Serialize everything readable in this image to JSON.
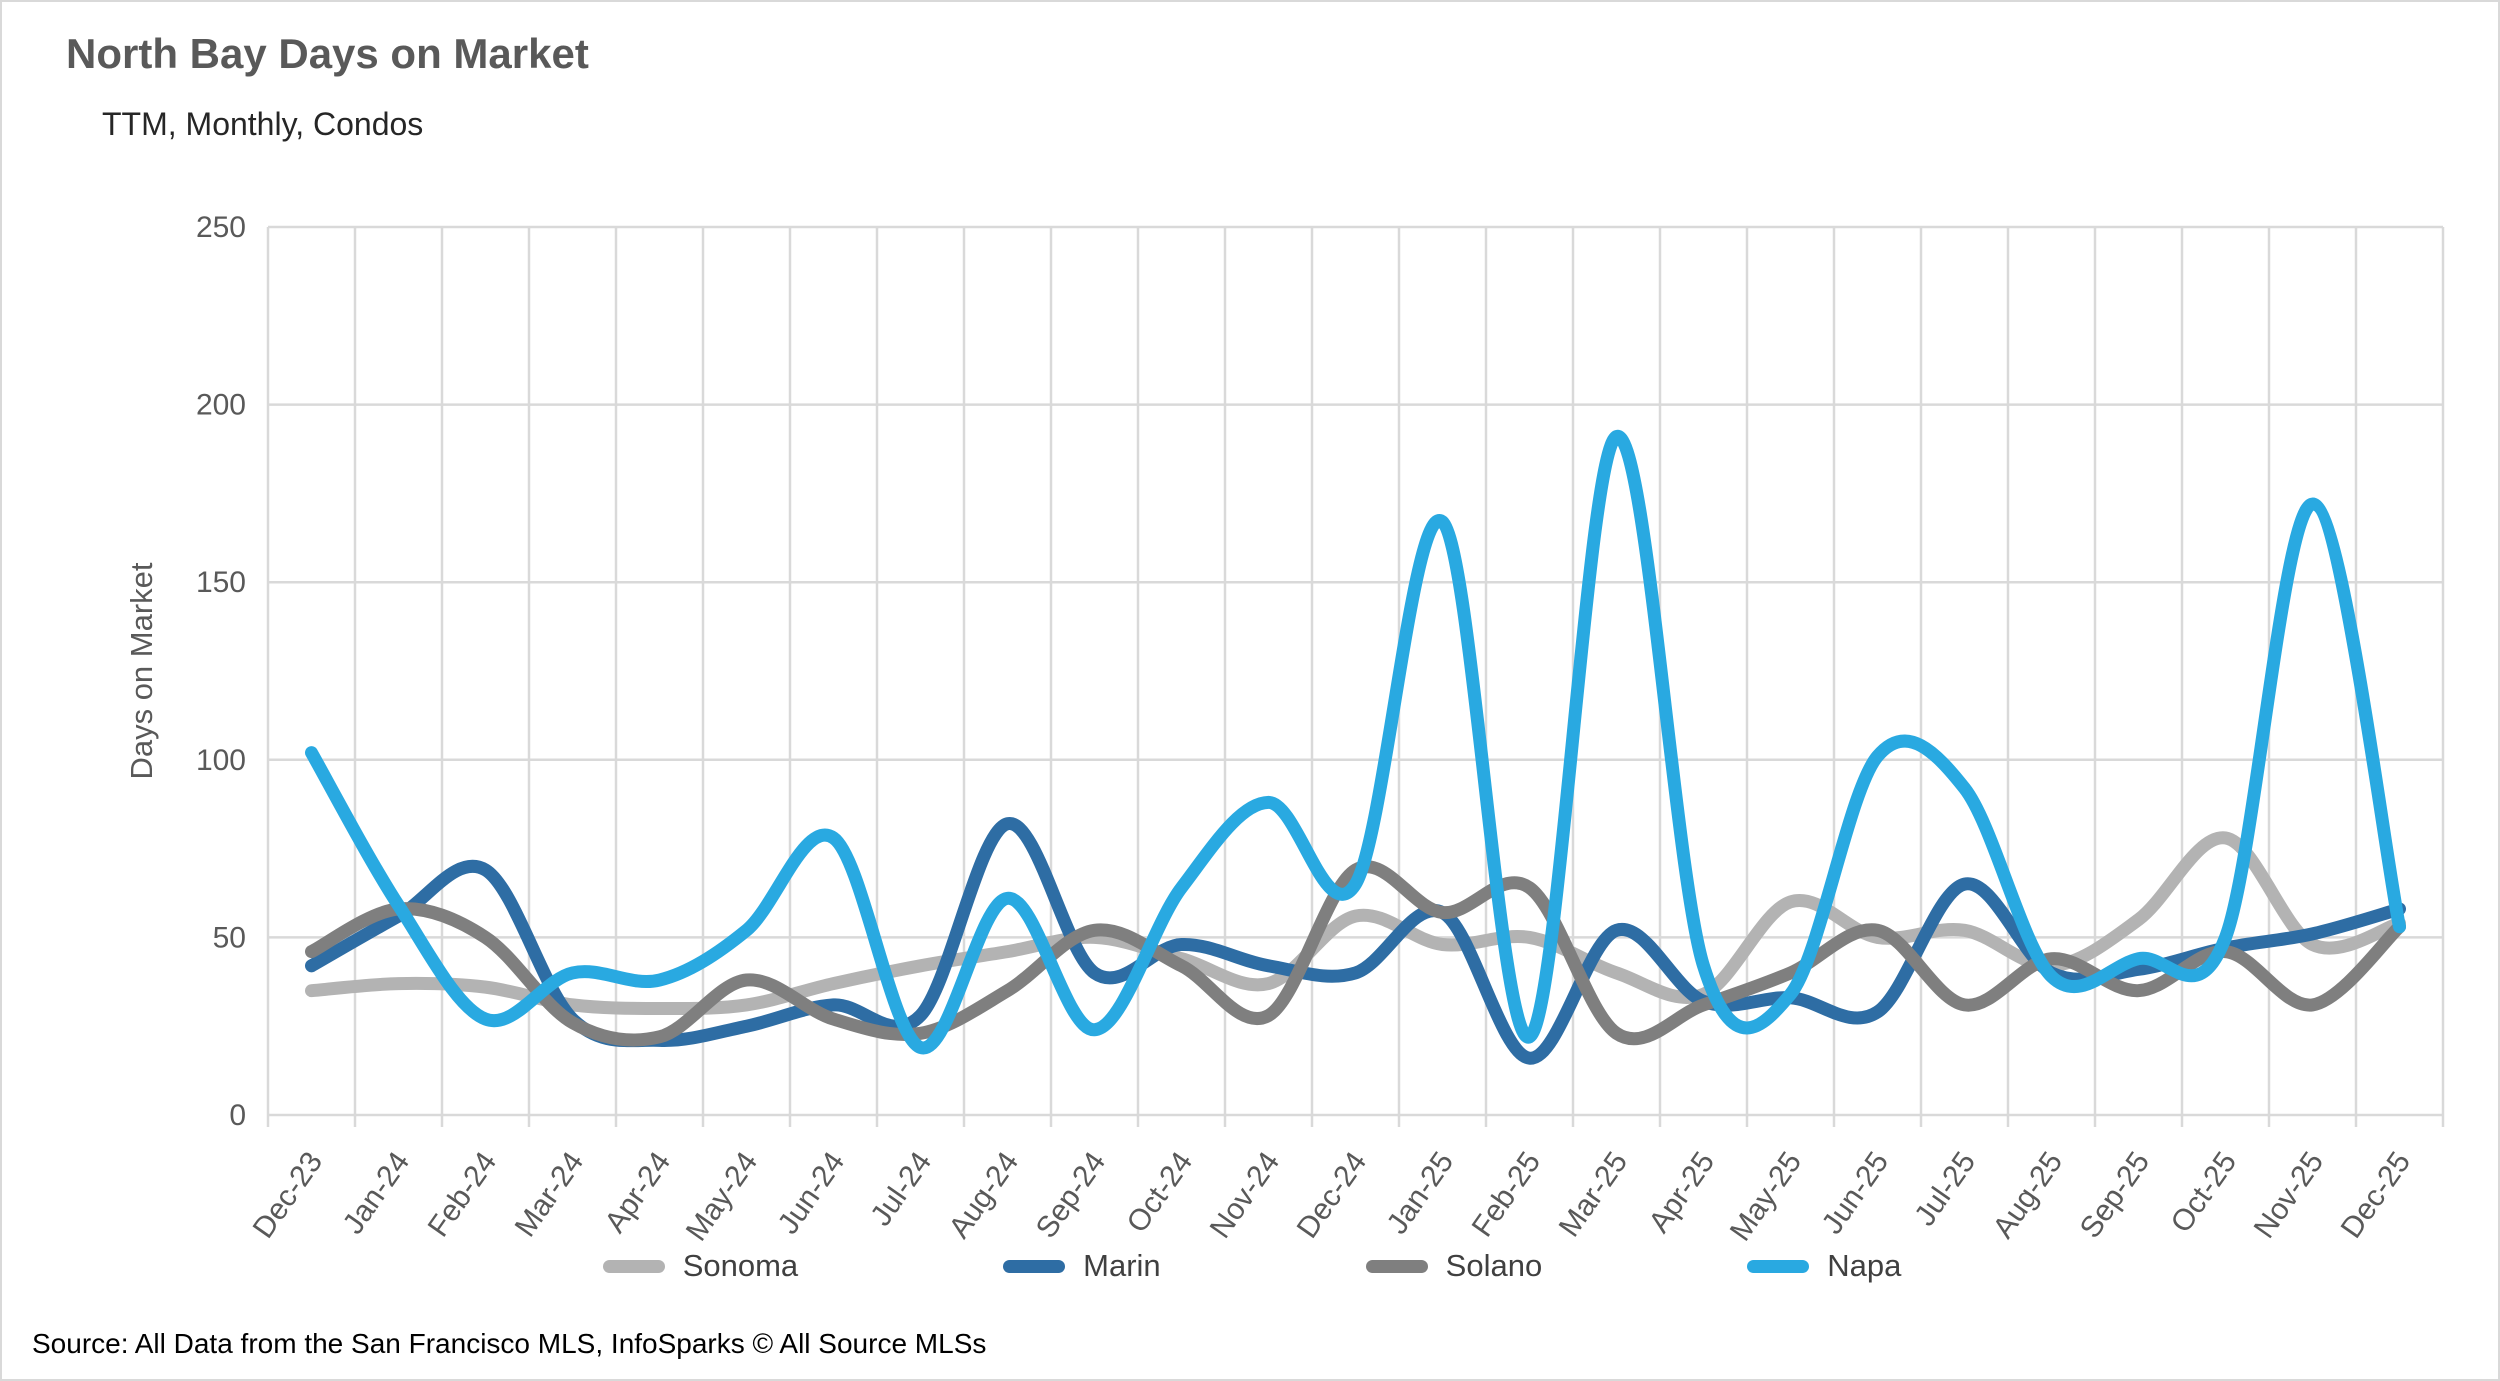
{
  "title": "North Bay Days on Market",
  "subtitle": "TTM, Monthly, Condos",
  "source": "Source: All Data from the San Francisco MLS, InfoSparks © All Source MLSs",
  "chart_data": {
    "type": "line",
    "title": "North Bay Days on Market",
    "subtitle": "TTM, Monthly, Condos",
    "xlabel": "",
    "ylabel": "Days on Market",
    "ylim": [
      0,
      250
    ],
    "ytick_interval": 50,
    "ytick_labels": [
      "0",
      "50",
      "100",
      "150",
      "200",
      "250"
    ],
    "grid": "both",
    "line_smoothing": true,
    "legend_position": "bottom",
    "axis_text_color": "#595959",
    "grid_color": "#d9d9d9",
    "categories": [
      "Dec-23",
      "Jan-24",
      "Feb-24",
      "Mar-24",
      "Apr-24",
      "May-24",
      "Jun-24",
      "Jul-24",
      "Aug-24",
      "Sep-24",
      "Oct-24",
      "Nov-24",
      "Dec-24",
      "Jan-25",
      "Feb-25",
      "Mar-25",
      "Apr-25",
      "May-25",
      "Jun-25",
      "Jul-25",
      "Aug-25",
      "Sep-25",
      "Oct-25",
      "Nov-25",
      "Dec-25"
    ],
    "series": [
      {
        "name": "Sonoma",
        "color": "#b3b3b3",
        "values": [
          35,
          37,
          36,
          31,
          30,
          31,
          37,
          42,
          46,
          50,
          44,
          37,
          56,
          48,
          50,
          40,
          34,
          60,
          50,
          52,
          42,
          55,
          78,
          48,
          54
        ]
      },
      {
        "name": "Marin",
        "color": "#2e6da4",
        "values": [
          42,
          56,
          69,
          27,
          21,
          25,
          31,
          28,
          82,
          40,
          48,
          42,
          40,
          57,
          16,
          52,
          32,
          33,
          29,
          65,
          40,
          41,
          47,
          51,
          58
        ]
      },
      {
        "name": "Solano",
        "color": "#7f7f7f",
        "values": [
          46,
          58,
          50,
          26,
          22,
          38,
          27,
          23,
          35,
          52,
          42,
          28,
          69,
          57,
          64,
          23,
          31,
          40,
          52,
          31,
          44,
          35,
          46,
          31,
          53
        ]
      },
      {
        "name": "Napa",
        "color": "#29a9e1",
        "values": [
          102,
          59,
          27,
          40,
          38,
          52,
          78,
          19,
          61,
          24,
          64,
          88,
          65,
          167,
          22,
          191,
          42,
          34,
          101,
          92,
          39,
          44,
          50,
          172,
          53
        ]
      }
    ]
  }
}
